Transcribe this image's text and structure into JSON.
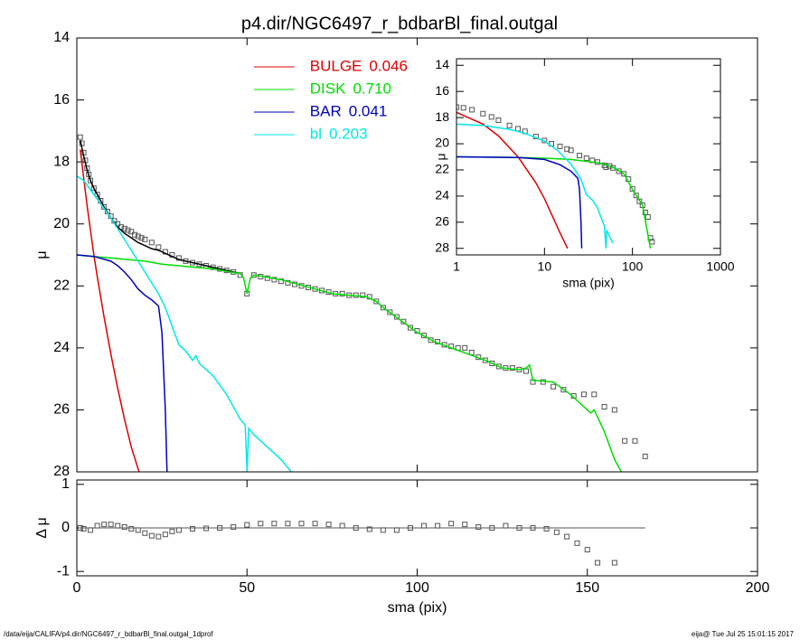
{
  "chart_data": [
    {
      "type": "line",
      "title": "p4.dir/NGC6497_r_bdbarBl_final.outgal",
      "y_label": "μ",
      "xlim": [
        0,
        200
      ],
      "xticks": [
        0,
        50,
        100,
        150,
        200
      ],
      "xtick_labels": false,
      "ylim": [
        28,
        14
      ],
      "yticks": [
        14,
        16,
        18,
        20,
        22,
        24,
        26,
        28
      ],
      "legend": "top",
      "series": [
        {
          "style": "square",
          "color": "#555555",
          "x": [
            1,
            1.5,
            2,
            2.5,
            3,
            3.5,
            4,
            5,
            6,
            7,
            8,
            9,
            10,
            11,
            12,
            13,
            14,
            15,
            16,
            17,
            18,
            19,
            20,
            22,
            24,
            26,
            28,
            30,
            32,
            34,
            36,
            38,
            40,
            42,
            44,
            46,
            48,
            50,
            52,
            54,
            56,
            58,
            60,
            62,
            64,
            66,
            68,
            70,
            72,
            74,
            76,
            78,
            80,
            82,
            84,
            86,
            88,
            90,
            92,
            94,
            96,
            98,
            100,
            102,
            104,
            106,
            108,
            110,
            112,
            114,
            116,
            118,
            120,
            122,
            124,
            126,
            128,
            130,
            132,
            134,
            137,
            140,
            143,
            146,
            149,
            152,
            155,
            158,
            161,
            164,
            167
          ],
          "values": [
            17.2,
            17.4,
            17.7,
            17.95,
            18.2,
            18.4,
            18.6,
            18.85,
            19.05,
            19.25,
            19.45,
            19.6,
            19.75,
            19.9,
            20.0,
            20.1,
            20.15,
            20.2,
            20.25,
            20.35,
            20.4,
            20.45,
            20.5,
            20.6,
            20.75,
            20.9,
            21.0,
            21.1,
            21.2,
            21.25,
            21.3,
            21.35,
            21.4,
            21.45,
            21.5,
            21.55,
            21.65,
            22.25,
            21.65,
            21.7,
            21.75,
            21.8,
            21.85,
            21.9,
            21.95,
            22.0,
            22.05,
            22.1,
            22.15,
            22.2,
            22.25,
            22.25,
            22.3,
            22.3,
            22.3,
            22.35,
            22.5,
            22.7,
            22.85,
            23.0,
            23.15,
            23.35,
            23.45,
            23.6,
            23.75,
            23.8,
            23.9,
            23.95,
            24.0,
            24.0,
            24.15,
            24.3,
            24.4,
            24.5,
            24.6,
            24.65,
            24.65,
            24.7,
            24.75,
            25.1,
            25.1,
            25.25,
            25.35,
            25.55,
            25.5,
            25.5,
            25.9,
            26.0,
            27.0,
            27.0,
            27.5
          ]
        },
        {
          "style": "line",
          "color": "#000000",
          "x": [
            1,
            2,
            3,
            4,
            5,
            6,
            8,
            10,
            12,
            14,
            16,
            18,
            20,
            22,
            24,
            26,
            28,
            30,
            32,
            36,
            40,
            44,
            48
          ],
          "values": [
            17.3,
            17.8,
            18.25,
            18.6,
            18.85,
            19.05,
            19.45,
            19.8,
            20.1,
            20.3,
            20.45,
            20.6,
            20.7,
            20.8,
            20.85,
            20.95,
            21.05,
            21.15,
            21.2,
            21.3,
            21.4,
            21.5,
            21.6
          ]
        },
        {
          "name": "BULGE",
          "fraction": "0.046",
          "style": "line",
          "color": "#e00000",
          "x": [
            1,
            2,
            3,
            4,
            5,
            6,
            8,
            10,
            12,
            14,
            16,
            18,
            18.3
          ],
          "values": [
            17.6,
            18.5,
            19.4,
            20.2,
            21.0,
            21.7,
            23.0,
            24.2,
            25.3,
            26.3,
            27.2,
            27.9,
            28.0
          ]
        },
        {
          "name": "DISK",
          "fraction": "0.710",
          "style": "line",
          "color": "#00dd00",
          "x": [
            0,
            5,
            10,
            15,
            20,
            25,
            30,
            35,
            40,
            45,
            48,
            49,
            50,
            51,
            52,
            55,
            60,
            65,
            70,
            75,
            80,
            85,
            88,
            90,
            95,
            100,
            105,
            110,
            115,
            120,
            125,
            130,
            132,
            133,
            134,
            135,
            140,
            145,
            150,
            151,
            152,
            155,
            158,
            160
          ],
          "values": [
            21.0,
            21.05,
            21.1,
            21.15,
            21.2,
            21.3,
            21.35,
            21.4,
            21.45,
            21.55,
            21.6,
            21.75,
            22.25,
            21.75,
            21.65,
            21.7,
            21.8,
            21.95,
            22.1,
            22.25,
            22.3,
            22.35,
            22.5,
            22.7,
            23.1,
            23.5,
            23.8,
            24.0,
            24.2,
            24.4,
            24.65,
            24.7,
            24.65,
            24.55,
            25.05,
            25.05,
            25.1,
            25.5,
            26.0,
            26.1,
            26.0,
            26.7,
            27.6,
            28.0
          ]
        },
        {
          "name": "BAR",
          "fraction": "0.041",
          "style": "line",
          "color": "#0000c0",
          "x": [
            0,
            5,
            10,
            12,
            14,
            16,
            18,
            20,
            22,
            24,
            25,
            26,
            26.5
          ],
          "values": [
            21.0,
            21.05,
            21.2,
            21.35,
            21.55,
            21.8,
            22.1,
            22.3,
            22.45,
            22.65,
            23.5,
            26.0,
            28.0
          ]
        },
        {
          "name": "bl",
          "fraction": "0.203",
          "style": "line",
          "color": "#00e8e8",
          "x": [
            0,
            2,
            4,
            6,
            8,
            10,
            12,
            14,
            16,
            18,
            20,
            22,
            24,
            26,
            28,
            30,
            32,
            34,
            35,
            36,
            38,
            40,
            44,
            48,
            49.5,
            50,
            50.5,
            52,
            56,
            60,
            63
          ],
          "values": [
            18.45,
            18.6,
            18.9,
            19.2,
            19.5,
            19.8,
            20.15,
            20.5,
            20.85,
            21.2,
            21.55,
            21.9,
            22.25,
            22.7,
            23.3,
            23.9,
            24.1,
            24.4,
            24.25,
            24.5,
            24.7,
            24.9,
            25.5,
            26.3,
            26.5,
            28.0,
            26.6,
            26.8,
            27.2,
            27.6,
            28.0
          ]
        }
      ]
    },
    {
      "type": "scatter",
      "x_label": "sma (pix)",
      "y_label": "Δ μ",
      "xlim": [
        0,
        200
      ],
      "xticks": [
        0,
        50,
        100,
        150,
        200
      ],
      "ylim": [
        -1.1,
        1.1
      ],
      "yticks": [
        -1,
        0,
        1
      ],
      "zero_line": true,
      "series": [
        {
          "style": "square",
          "color": "#555555",
          "x": [
            1,
            2,
            4,
            6,
            8,
            10,
            12,
            14,
            16,
            18,
            20,
            22,
            24,
            26,
            28,
            30,
            34,
            38,
            42,
            46,
            50,
            54,
            58,
            62,
            66,
            70,
            74,
            78,
            82,
            86,
            90,
            94,
            98,
            102,
            106,
            110,
            114,
            118,
            122,
            126,
            130,
            134,
            138,
            141,
            144,
            147,
            150,
            153,
            158
          ],
          "values": [
            0.0,
            -0.02,
            -0.05,
            0.05,
            0.08,
            0.08,
            0.05,
            0.02,
            -0.02,
            -0.05,
            -0.12,
            -0.18,
            -0.2,
            -0.15,
            -0.08,
            -0.05,
            -0.02,
            -0.01,
            0.0,
            0.02,
            0.07,
            0.1,
            0.1,
            0.1,
            0.1,
            0.1,
            0.08,
            0.05,
            0.0,
            -0.03,
            -0.05,
            -0.05,
            0.0,
            0.05,
            0.05,
            0.1,
            0.08,
            0.02,
            0.0,
            0.05,
            0.0,
            0.0,
            -0.02,
            -0.1,
            -0.2,
            -0.35,
            -0.5,
            -0.8,
            -0.8
          ]
        }
      ]
    },
    {
      "type": "line",
      "x_label": "sma (pix)",
      "y_label": "μ",
      "xlog": true,
      "xlim": [
        1,
        1000
      ],
      "xticks": [
        1,
        10,
        100,
        1000
      ],
      "ylim": [
        28.5,
        13.5
      ],
      "yticks": [
        14,
        16,
        18,
        20,
        22,
        24,
        26,
        28
      ],
      "series": [
        {
          "style": "square",
          "color": "#555555",
          "x": [
            1,
            1.2,
            1.5,
            2,
            2.5,
            3,
            4,
            5,
            6,
            8,
            10,
            12,
            15,
            18,
            20,
            25,
            30,
            35,
            40,
            48,
            50,
            55,
            60,
            70,
            80,
            90,
            100,
            110,
            120,
            130,
            140,
            150,
            160,
            167
          ],
          "values": [
            17.2,
            17.25,
            17.4,
            17.7,
            17.95,
            18.2,
            18.6,
            18.85,
            19.05,
            19.45,
            19.75,
            20.0,
            20.2,
            20.4,
            20.5,
            20.9,
            21.1,
            21.27,
            21.4,
            21.65,
            21.8,
            21.7,
            21.85,
            22.1,
            22.3,
            22.7,
            23.45,
            23.95,
            24.4,
            24.7,
            25.25,
            25.6,
            27.2,
            27.5
          ]
        },
        {
          "style": "line",
          "color": "#e00000",
          "x": [
            1,
            2,
            3,
            5,
            8,
            10,
            15,
            18.3
          ],
          "values": [
            17.6,
            18.5,
            19.4,
            21.0,
            23.0,
            24.2,
            26.8,
            28.0
          ]
        },
        {
          "style": "line",
          "color": "#00dd00",
          "x": [
            1,
            5,
            10,
            20,
            30,
            40,
            50,
            60,
            80,
            100,
            130,
            160
          ],
          "values": [
            21.0,
            21.05,
            21.1,
            21.2,
            21.35,
            21.45,
            21.6,
            21.8,
            22.3,
            23.5,
            24.7,
            28.0
          ]
        },
        {
          "style": "line",
          "color": "#0000c0",
          "x": [
            1,
            5,
            10,
            15,
            20,
            24,
            25,
            26,
            26.5
          ],
          "values": [
            21.0,
            21.05,
            21.2,
            21.6,
            22.1,
            22.65,
            23.5,
            26.0,
            28.0
          ]
        },
        {
          "style": "line",
          "color": "#00e8e8",
          "x": [
            1,
            2,
            4,
            6,
            10,
            14,
            20,
            26,
            30,
            35,
            40,
            48,
            50,
            51,
            56,
            60
          ],
          "values": [
            18.5,
            18.6,
            18.9,
            19.2,
            19.8,
            20.5,
            21.55,
            22.7,
            23.9,
            24.3,
            24.9,
            26.3,
            28.0,
            26.6,
            27.2,
            27.6
          ]
        }
      ]
    }
  ],
  "footer": {
    "left": "/data/eija/CALIFA/p4.dir/NGC6497_r_bdbarBl_final.outgal_1dprof",
    "right": "eija@  Tue Jul 25 15:01:15 2017"
  }
}
